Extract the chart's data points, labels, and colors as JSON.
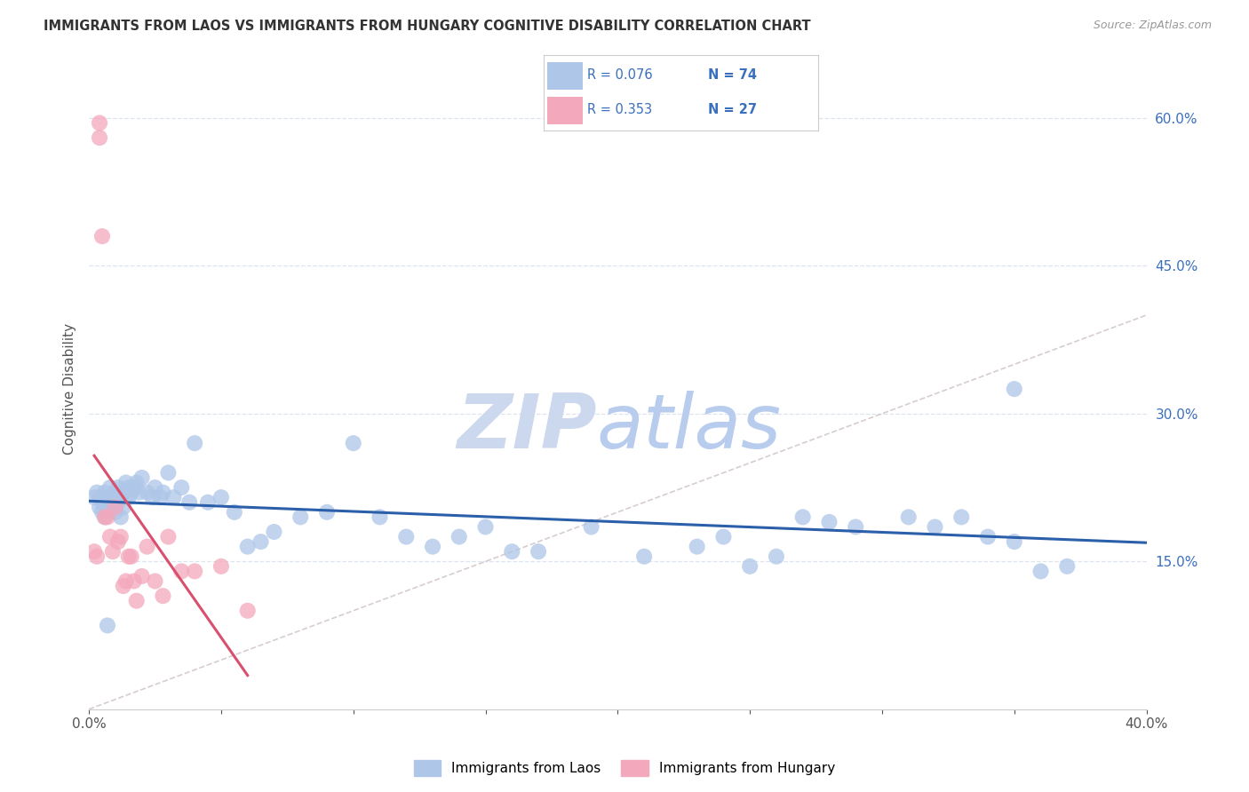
{
  "title": "IMMIGRANTS FROM LAOS VS IMMIGRANTS FROM HUNGARY COGNITIVE DISABILITY CORRELATION CHART",
  "source": "Source: ZipAtlas.com",
  "ylabel": "Cognitive Disability",
  "xlim": [
    0.0,
    0.4
  ],
  "ylim": [
    0.0,
    0.65
  ],
  "yticks": [
    0.15,
    0.3,
    0.45,
    0.6
  ],
  "ytick_labels": [
    "15.0%",
    "30.0%",
    "45.0%",
    "60.0%"
  ],
  "xtick_labels": [
    "0.0%",
    "",
    "",
    "",
    "",
    "",
    "",
    "",
    "40.0%"
  ],
  "legend_label1": "Immigrants from Laos",
  "legend_label2": "Immigrants from Hungary",
  "R1": 0.076,
  "N1": 74,
  "R2": 0.353,
  "N2": 27,
  "color_laos": "#aec6e8",
  "color_hungary": "#f4a8bc",
  "color_laos_line": "#2c5faa",
  "color_hungary_line": "#d94f6e",
  "color_diagonal": "#c8b8b8",
  "laos_x": [
    0.002,
    0.003,
    0.004,
    0.004,
    0.005,
    0.005,
    0.006,
    0.006,
    0.007,
    0.007,
    0.008,
    0.008,
    0.009,
    0.009,
    0.01,
    0.01,
    0.011,
    0.011,
    0.012,
    0.012,
    0.013,
    0.013,
    0.014,
    0.015,
    0.015,
    0.016,
    0.017,
    0.018,
    0.019,
    0.02,
    0.022,
    0.024,
    0.025,
    0.027,
    0.028,
    0.03,
    0.032,
    0.035,
    0.038,
    0.04,
    0.045,
    0.05,
    0.055,
    0.06,
    0.065,
    0.07,
    0.08,
    0.09,
    0.1,
    0.11,
    0.12,
    0.13,
    0.14,
    0.15,
    0.16,
    0.17,
    0.19,
    0.21,
    0.23,
    0.24,
    0.25,
    0.26,
    0.27,
    0.28,
    0.29,
    0.31,
    0.32,
    0.33,
    0.34,
    0.35,
    0.36,
    0.37,
    0.007,
    0.35
  ],
  "laos_y": [
    0.215,
    0.22,
    0.205,
    0.215,
    0.2,
    0.21,
    0.195,
    0.22,
    0.2,
    0.215,
    0.21,
    0.225,
    0.205,
    0.215,
    0.2,
    0.22,
    0.21,
    0.225,
    0.195,
    0.215,
    0.205,
    0.22,
    0.23,
    0.215,
    0.225,
    0.22,
    0.225,
    0.23,
    0.22,
    0.235,
    0.22,
    0.215,
    0.225,
    0.215,
    0.22,
    0.24,
    0.215,
    0.225,
    0.21,
    0.27,
    0.21,
    0.215,
    0.2,
    0.165,
    0.17,
    0.18,
    0.195,
    0.2,
    0.27,
    0.195,
    0.175,
    0.165,
    0.175,
    0.185,
    0.16,
    0.16,
    0.185,
    0.155,
    0.165,
    0.175,
    0.145,
    0.155,
    0.195,
    0.19,
    0.185,
    0.195,
    0.185,
    0.195,
    0.175,
    0.17,
    0.14,
    0.145,
    0.085,
    0.325
  ],
  "hungary_x": [
    0.002,
    0.003,
    0.004,
    0.004,
    0.005,
    0.006,
    0.007,
    0.008,
    0.009,
    0.01,
    0.011,
    0.012,
    0.013,
    0.014,
    0.015,
    0.016,
    0.017,
    0.018,
    0.02,
    0.022,
    0.025,
    0.028,
    0.03,
    0.035,
    0.04,
    0.05,
    0.06
  ],
  "hungary_y": [
    0.16,
    0.155,
    0.58,
    0.595,
    0.48,
    0.195,
    0.195,
    0.175,
    0.16,
    0.205,
    0.17,
    0.175,
    0.125,
    0.13,
    0.155,
    0.155,
    0.13,
    0.11,
    0.135,
    0.165,
    0.13,
    0.115,
    0.175,
    0.14,
    0.14,
    0.145,
    0.1
  ],
  "background_color": "#ffffff",
  "grid_color": "#dde4ee",
  "watermark_zip_color": "#ccd8ee",
  "watermark_atlas_color": "#b8ccee",
  "r_n_color": "#3a6fbe",
  "title_color": "#333333",
  "source_color": "#999999"
}
